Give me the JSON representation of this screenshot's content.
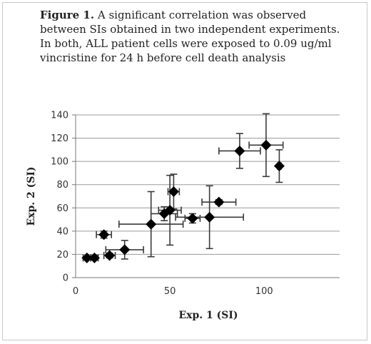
{
  "caption": {
    "label": "Figure 1.",
    "text": " A significant correlation was observed between SIs obtained in two independent experiments. In both, ALL patient cells were exposed to 0.09 ug/ml vincristine for 24 h before cell death analysis"
  },
  "chart_data": {
    "type": "scatter",
    "xlabel": "Exp. 1 (SI)",
    "ylabel": "Exp. 2 (SI)",
    "xlim": [
      0,
      140
    ],
    "ylim": [
      0,
      140
    ],
    "xticks": [
      0,
      50,
      100
    ],
    "yticks": [
      0,
      20,
      40,
      60,
      80,
      100,
      120,
      140
    ],
    "grid": "horizontal",
    "marker": "diamond",
    "marker_color": "#000000",
    "points": [
      {
        "x": 6,
        "y": 17,
        "xerr": 2,
        "yerr": 1
      },
      {
        "x": 10,
        "y": 17,
        "xerr": 2,
        "yerr": 2
      },
      {
        "x": 15,
        "y": 37,
        "xerr": 4,
        "yerr": 3
      },
      {
        "x": 18,
        "y": 19,
        "xerr": 3,
        "yerr": 2
      },
      {
        "x": 26,
        "y": 24,
        "xerr": 10,
        "yerr": 8
      },
      {
        "x": 40,
        "y": 46,
        "xerr": 17,
        "yerr": 28
      },
      {
        "x": 47,
        "y": 55,
        "xerr": 7,
        "yerr": 6
      },
      {
        "x": 50,
        "y": 58,
        "xerr": 6,
        "yerr": 30
      },
      {
        "x": 52,
        "y": 74,
        "xerr": 3,
        "yerr": 15
      },
      {
        "x": 62,
        "y": 51,
        "xerr": 4,
        "yerr": 4
      },
      {
        "x": 71,
        "y": 52,
        "xerr": 18,
        "yerr": 27
      },
      {
        "x": 76,
        "y": 65,
        "xerr": 9,
        "yerr": 2
      },
      {
        "x": 87,
        "y": 109,
        "xerr": 11,
        "yerr": 15
      },
      {
        "x": 101,
        "y": 114,
        "xerr": 9,
        "yerr": 27
      },
      {
        "x": 108,
        "y": 96,
        "xerr": 1,
        "yerr": 14
      }
    ]
  }
}
